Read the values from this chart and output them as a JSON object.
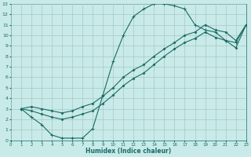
{
  "xlabel": "Humidex (Indice chaleur)",
  "bg_color": "#c8eae8",
  "grid_color": "#a8c8c4",
  "line_color": "#1a6b65",
  "xlim": [
    0,
    23
  ],
  "ylim": [
    0,
    13
  ],
  "xticks": [
    0,
    1,
    2,
    3,
    4,
    5,
    6,
    7,
    8,
    9,
    10,
    11,
    12,
    13,
    14,
    15,
    16,
    17,
    18,
    19,
    20,
    21,
    22,
    23
  ],
  "yticks": [
    0,
    1,
    2,
    3,
    4,
    5,
    6,
    7,
    8,
    9,
    10,
    11,
    12,
    13
  ],
  "curve_x": [
    1,
    2,
    3,
    4,
    5,
    6,
    7,
    8,
    9,
    10,
    11,
    12,
    13,
    14,
    15,
    16,
    17,
    18,
    19,
    20,
    21,
    22,
    23
  ],
  "curve_y": [
    3,
    2.2,
    1.5,
    0.5,
    0.2,
    0.2,
    0.2,
    1.1,
    4.3,
    7.5,
    10.0,
    11.8,
    12.5,
    13.0,
    13.0,
    12.8,
    12.5,
    11.0,
    10.5,
    10.3,
    9.5,
    9.3,
    11.0
  ],
  "line2_x": [
    1,
    2,
    3,
    4,
    5,
    6,
    7,
    8,
    9,
    10,
    11,
    12,
    13,
    14,
    15,
    16,
    17,
    18,
    19,
    20,
    21,
    22,
    23
  ],
  "line2_y": [
    3,
    3.2,
    3.0,
    2.8,
    2.6,
    2.8,
    3.2,
    3.5,
    4.2,
    5.0,
    6.0,
    6.7,
    7.2,
    8.0,
    8.7,
    9.3,
    10.0,
    10.3,
    11.0,
    10.5,
    10.3,
    9.5,
    11.0
  ],
  "line3_x": [
    1,
    2,
    3,
    4,
    5,
    6,
    7,
    8,
    9,
    10,
    11,
    12,
    13,
    14,
    15,
    16,
    17,
    18,
    19,
    20,
    21,
    22,
    23
  ],
  "line3_y": [
    3,
    2.8,
    2.5,
    2.2,
    2.0,
    2.2,
    2.5,
    2.8,
    3.5,
    4.3,
    5.2,
    5.9,
    6.4,
    7.2,
    8.0,
    8.7,
    9.3,
    9.7,
    10.3,
    9.8,
    9.5,
    8.8,
    11.0
  ]
}
